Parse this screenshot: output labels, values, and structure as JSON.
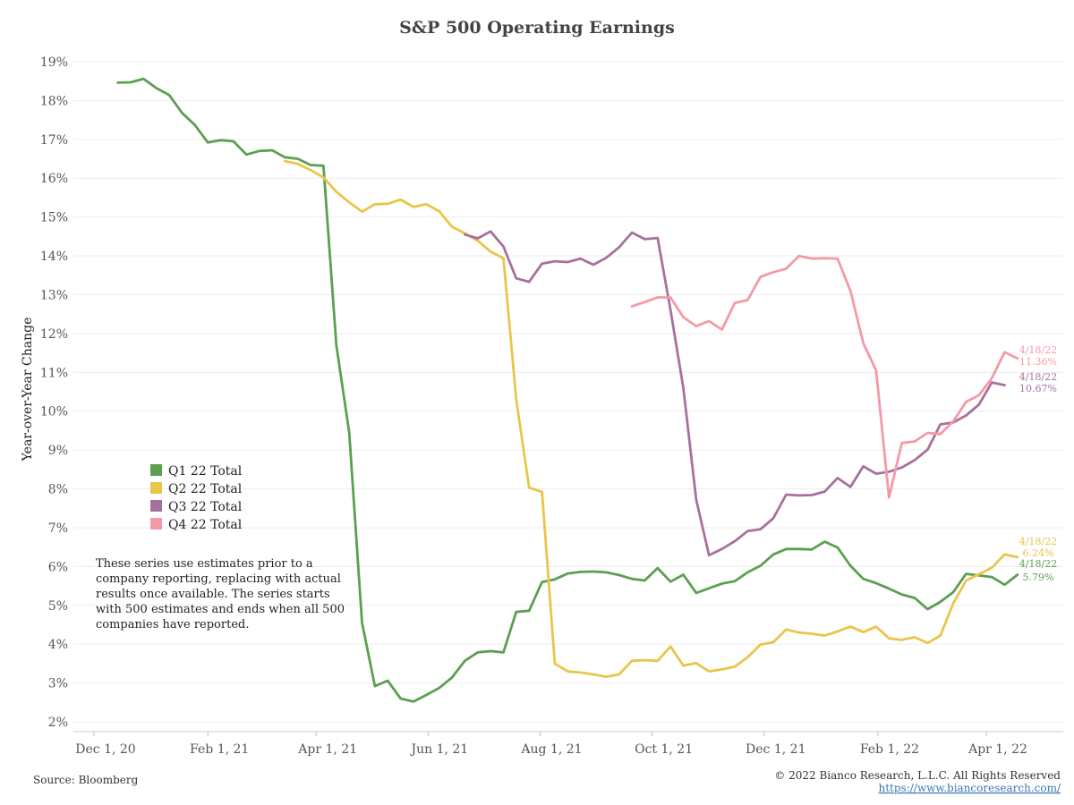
{
  "chart_data": {
    "type": "line",
    "title": "S&P 500 Operating Earnings",
    "ylabel": "Year-over-Year Change",
    "xlabel": "",
    "ylim": [
      1.8,
      19.3
    ],
    "yticks": [
      2,
      3,
      4,
      5,
      6,
      7,
      8,
      9,
      10,
      11,
      12,
      13,
      14,
      15,
      16,
      17,
      18,
      19
    ],
    "ytick_format": "%",
    "xlim": [
      "2020-11-28",
      "2022-05-01"
    ],
    "xticks": [
      {
        "date": "2020-12-01",
        "label": "Dec 1, 20"
      },
      {
        "date": "2021-02-01",
        "label": "Feb 1, 21"
      },
      {
        "date": "2021-04-01",
        "label": "Apr 1, 21"
      },
      {
        "date": "2021-06-01",
        "label": "Jun 1, 21"
      },
      {
        "date": "2021-08-01",
        "label": "Aug 1, 21"
      },
      {
        "date": "2021-10-01",
        "label": "Oct 1, 21"
      },
      {
        "date": "2021-12-01",
        "label": "Dec 1, 21"
      },
      {
        "date": "2022-02-01",
        "label": "Feb 1, 22"
      },
      {
        "date": "2022-04-01",
        "label": "Apr 1, 22"
      }
    ],
    "grid": true,
    "legend_position": "center-left",
    "series": [
      {
        "name": "Q1 22 Total",
        "color": "#5aa04f",
        "end_date_label": "4/18/22",
        "end_value_label": "5.79%",
        "points": [
          [
            "2020-12-14",
            18.46
          ],
          [
            "2020-12-21",
            18.47
          ],
          [
            "2020-12-28",
            18.56
          ],
          [
            "2021-01-04",
            18.32
          ],
          [
            "2021-01-11",
            18.14
          ],
          [
            "2021-01-18",
            17.68
          ],
          [
            "2021-01-25",
            17.37
          ],
          [
            "2021-02-01",
            16.92
          ],
          [
            "2021-02-08",
            16.98
          ],
          [
            "2021-02-15",
            16.95
          ],
          [
            "2021-02-22",
            16.61
          ],
          [
            "2021-03-01",
            16.7
          ],
          [
            "2021-03-08",
            16.72
          ],
          [
            "2021-03-15",
            16.54
          ],
          [
            "2021-03-22",
            16.5
          ],
          [
            "2021-03-29",
            16.34
          ],
          [
            "2021-04-05",
            16.32
          ],
          [
            "2021-04-12",
            11.7
          ],
          [
            "2021-04-19",
            9.45
          ],
          [
            "2021-04-26",
            4.55
          ],
          [
            "2021-05-03",
            2.92
          ],
          [
            "2021-05-10",
            3.06
          ],
          [
            "2021-05-17",
            2.6
          ],
          [
            "2021-05-24",
            2.52
          ],
          [
            "2021-05-31",
            2.69
          ],
          [
            "2021-06-07",
            2.87
          ],
          [
            "2021-06-14",
            3.14
          ],
          [
            "2021-06-21",
            3.57
          ],
          [
            "2021-06-28",
            3.79
          ],
          [
            "2021-07-05",
            3.82
          ],
          [
            "2021-07-12",
            3.79
          ],
          [
            "2021-07-19",
            4.83
          ],
          [
            "2021-07-26",
            4.86
          ],
          [
            "2021-08-02",
            5.6
          ],
          [
            "2021-08-09",
            5.67
          ],
          [
            "2021-08-16",
            5.82
          ],
          [
            "2021-08-23",
            5.86
          ],
          [
            "2021-08-30",
            5.87
          ],
          [
            "2021-09-06",
            5.85
          ],
          [
            "2021-09-13",
            5.78
          ],
          [
            "2021-09-20",
            5.68
          ],
          [
            "2021-09-27",
            5.64
          ],
          [
            "2021-10-04",
            5.96
          ],
          [
            "2021-10-11",
            5.61
          ],
          [
            "2021-10-18",
            5.79
          ],
          [
            "2021-10-25",
            5.32
          ],
          [
            "2021-11-01",
            5.44
          ],
          [
            "2021-11-08",
            5.56
          ],
          [
            "2021-11-15",
            5.62
          ],
          [
            "2021-11-22",
            5.85
          ],
          [
            "2021-11-29",
            6.02
          ],
          [
            "2021-12-06",
            6.31
          ],
          [
            "2021-12-13",
            6.45
          ],
          [
            "2021-12-20",
            6.45
          ],
          [
            "2021-12-27",
            6.44
          ],
          [
            "2022-01-03",
            6.64
          ],
          [
            "2022-01-10",
            6.49
          ],
          [
            "2022-01-17",
            6.02
          ],
          [
            "2022-01-24",
            5.68
          ],
          [
            "2022-01-31",
            5.57
          ],
          [
            "2022-02-07",
            5.43
          ],
          [
            "2022-02-14",
            5.28
          ],
          [
            "2022-02-21",
            5.19
          ],
          [
            "2022-02-28",
            4.9
          ],
          [
            "2022-03-07",
            5.09
          ],
          [
            "2022-03-14",
            5.34
          ],
          [
            "2022-03-21",
            5.81
          ],
          [
            "2022-03-28",
            5.77
          ],
          [
            "2022-04-04",
            5.73
          ],
          [
            "2022-04-11",
            5.53
          ],
          [
            "2022-04-18",
            5.79
          ]
        ]
      },
      {
        "name": "Q2 22 Total",
        "color": "#e9c54a",
        "end_date_label": "4/18/22",
        "end_value_label": "6.24%",
        "points": [
          [
            "2021-03-15",
            16.44
          ],
          [
            "2021-03-22",
            16.37
          ],
          [
            "2021-03-29",
            16.21
          ],
          [
            "2021-04-05",
            16.02
          ],
          [
            "2021-04-12",
            15.65
          ],
          [
            "2021-04-19",
            15.38
          ],
          [
            "2021-04-26",
            15.14
          ],
          [
            "2021-05-03",
            15.33
          ],
          [
            "2021-05-10",
            15.34
          ],
          [
            "2021-05-17",
            15.45
          ],
          [
            "2021-05-24",
            15.26
          ],
          [
            "2021-05-31",
            15.33
          ],
          [
            "2021-06-07",
            15.15
          ],
          [
            "2021-06-14",
            14.75
          ],
          [
            "2021-06-21",
            14.58
          ],
          [
            "2021-06-28",
            14.39
          ],
          [
            "2021-07-05",
            14.11
          ],
          [
            "2021-07-12",
            13.94
          ],
          [
            "2021-07-19",
            10.3
          ],
          [
            "2021-07-26",
            8.03
          ],
          [
            "2021-08-02",
            7.92
          ],
          [
            "2021-08-09",
            3.5
          ],
          [
            "2021-08-16",
            3.3
          ],
          [
            "2021-08-23",
            3.27
          ],
          [
            "2021-08-30",
            3.22
          ],
          [
            "2021-09-06",
            3.16
          ],
          [
            "2021-09-13",
            3.22
          ],
          [
            "2021-09-20",
            3.57
          ],
          [
            "2021-09-27",
            3.59
          ],
          [
            "2021-10-04",
            3.57
          ],
          [
            "2021-10-11",
            3.94
          ],
          [
            "2021-10-18",
            3.45
          ],
          [
            "2021-10-25",
            3.51
          ],
          [
            "2021-11-01",
            3.3
          ],
          [
            "2021-11-08",
            3.35
          ],
          [
            "2021-11-15",
            3.42
          ],
          [
            "2021-11-22",
            3.66
          ],
          [
            "2021-11-29",
            3.99
          ],
          [
            "2021-12-06",
            4.05
          ],
          [
            "2021-12-13",
            4.38
          ],
          [
            "2021-12-20",
            4.3
          ],
          [
            "2021-12-27",
            4.27
          ],
          [
            "2022-01-03",
            4.22
          ],
          [
            "2022-01-10",
            4.33
          ],
          [
            "2022-01-17",
            4.45
          ],
          [
            "2022-01-24",
            4.31
          ],
          [
            "2022-01-31",
            4.45
          ],
          [
            "2022-02-07",
            4.15
          ],
          [
            "2022-02-14",
            4.11
          ],
          [
            "2022-02-21",
            4.18
          ],
          [
            "2022-02-28",
            4.03
          ],
          [
            "2022-03-07",
            4.22
          ],
          [
            "2022-03-14",
            5.05
          ],
          [
            "2022-03-21",
            5.64
          ],
          [
            "2022-03-28",
            5.8
          ],
          [
            "2022-04-04",
            5.97
          ],
          [
            "2022-04-11",
            6.31
          ],
          [
            "2022-04-18",
            6.24
          ]
        ]
      },
      {
        "name": "Q3 22 Total",
        "color": "#a8709c",
        "end_date_label": "4/18/22",
        "end_value_label": "10.67%",
        "points": [
          [
            "2021-06-21",
            14.55
          ],
          [
            "2021-06-28",
            14.45
          ],
          [
            "2021-07-05",
            14.63
          ],
          [
            "2021-07-12",
            14.24
          ],
          [
            "2021-07-19",
            13.42
          ],
          [
            "2021-07-26",
            13.33
          ],
          [
            "2021-08-02",
            13.8
          ],
          [
            "2021-08-09",
            13.86
          ],
          [
            "2021-08-16",
            13.84
          ],
          [
            "2021-08-23",
            13.93
          ],
          [
            "2021-08-30",
            13.77
          ],
          [
            "2021-09-06",
            13.95
          ],
          [
            "2021-09-13",
            14.22
          ],
          [
            "2021-09-20",
            14.6
          ],
          [
            "2021-09-27",
            14.43
          ],
          [
            "2021-10-04",
            14.46
          ],
          [
            "2021-10-11",
            12.6
          ],
          [
            "2021-10-18",
            10.6
          ],
          [
            "2021-10-25",
            7.72
          ],
          [
            "2021-11-01",
            6.29
          ],
          [
            "2021-11-08",
            6.45
          ],
          [
            "2021-11-15",
            6.65
          ],
          [
            "2021-11-22",
            6.91
          ],
          [
            "2021-11-29",
            6.96
          ],
          [
            "2021-12-06",
            7.24
          ],
          [
            "2021-12-13",
            7.85
          ],
          [
            "2021-12-20",
            7.83
          ],
          [
            "2021-12-27",
            7.84
          ],
          [
            "2022-01-03",
            7.93
          ],
          [
            "2022-01-10",
            8.28
          ],
          [
            "2022-01-17",
            8.05
          ],
          [
            "2022-01-24",
            8.58
          ],
          [
            "2022-01-31",
            8.39
          ],
          [
            "2022-02-07",
            8.44
          ],
          [
            "2022-02-14",
            8.55
          ],
          [
            "2022-02-21",
            8.74
          ],
          [
            "2022-02-28",
            9.01
          ],
          [
            "2022-03-07",
            9.66
          ],
          [
            "2022-03-14",
            9.71
          ],
          [
            "2022-03-21",
            9.89
          ],
          [
            "2022-03-28",
            10.17
          ],
          [
            "2022-04-04",
            10.74
          ],
          [
            "2022-04-11",
            10.67
          ]
        ]
      },
      {
        "name": "Q4 22 Total",
        "color": "#f49aa6",
        "end_date_label": "4/18/22",
        "end_value_label": "11.36%",
        "points": [
          [
            "2021-09-20",
            12.7
          ],
          [
            "2021-09-27",
            12.81
          ],
          [
            "2021-10-04",
            12.93
          ],
          [
            "2021-10-11",
            12.93
          ],
          [
            "2021-10-18",
            12.42
          ],
          [
            "2021-10-25",
            12.19
          ],
          [
            "2021-11-01",
            12.32
          ],
          [
            "2021-11-08",
            12.1
          ],
          [
            "2021-11-15",
            12.79
          ],
          [
            "2021-11-22",
            12.86
          ],
          [
            "2021-11-29",
            13.46
          ],
          [
            "2021-12-06",
            13.58
          ],
          [
            "2021-12-13",
            13.67
          ],
          [
            "2021-12-20",
            14.0
          ],
          [
            "2021-12-27",
            13.93
          ],
          [
            "2022-01-03",
            13.94
          ],
          [
            "2022-01-10",
            13.93
          ],
          [
            "2022-01-17",
            13.1
          ],
          [
            "2022-01-24",
            11.75
          ],
          [
            "2022-01-31",
            11.05
          ],
          [
            "2022-02-07",
            7.78
          ],
          [
            "2022-02-14",
            9.18
          ],
          [
            "2022-02-21",
            9.22
          ],
          [
            "2022-02-28",
            9.44
          ],
          [
            "2022-03-07",
            9.41
          ],
          [
            "2022-03-14",
            9.74
          ],
          [
            "2022-03-21",
            10.24
          ],
          [
            "2022-03-28",
            10.41
          ],
          [
            "2022-04-04",
            10.85
          ],
          [
            "2022-04-11",
            11.52
          ],
          [
            "2022-04-18",
            11.36
          ]
        ]
      }
    ],
    "annotation": [
      "These series use estimates prior to a",
      "company reporting, replacing with actual",
      "results once available. The series starts",
      "with 500 estimates and ends when all 500",
      "companies have reported."
    ]
  },
  "footer": {
    "source": "Source: Bloomberg",
    "copyright": "© 2022 Bianco Research, L.L.C. All Rights Reserved",
    "url": "https://www.biancoresearch.com/"
  }
}
